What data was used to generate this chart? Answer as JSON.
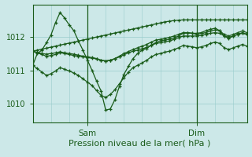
{
  "background_color": "#cce8e8",
  "grid_color": "#99cccc",
  "line_color": "#1a5c1a",
  "xlabel": "Pression niveau de la mer( hPa )",
  "xlabel_fontsize": 8,
  "ytick_values": [
    1010,
    1011,
    1012
  ],
  "ylim": [
    1009.45,
    1012.95
  ],
  "xlim": [
    0,
    47
  ],
  "xtick_positions": [
    12,
    36
  ],
  "xtick_labels": [
    "Sam",
    "Dim"
  ],
  "s1": [
    1011.15,
    1011.5,
    1011.6,
    1011.82,
    1012.05,
    1012.42,
    1012.72,
    1012.55,
    1012.35,
    1012.18,
    1011.88,
    1011.6,
    1011.3,
    1011.0,
    1010.68,
    1010.38,
    1009.82,
    1009.85,
    1010.12,
    1010.52,
    1010.88,
    1011.12,
    1011.35,
    1011.5,
    1011.6,
    1011.65,
    1011.75,
    1011.82,
    1011.88,
    1011.9,
    1011.92,
    1011.96,
    1012.02,
    1012.1,
    1012.12,
    1012.1,
    1012.1,
    1012.12,
    1012.18,
    1012.22,
    1012.25,
    1012.18,
    1012.02,
    1011.95,
    1012.02,
    1012.07,
    1012.12,
    1012.07
  ],
  "s2": [
    1011.57,
    1011.6,
    1011.63,
    1011.66,
    1011.69,
    1011.72,
    1011.75,
    1011.78,
    1011.81,
    1011.84,
    1011.87,
    1011.9,
    1011.93,
    1011.96,
    1011.99,
    1012.02,
    1012.05,
    1012.08,
    1012.11,
    1012.14,
    1012.17,
    1012.2,
    1012.23,
    1012.26,
    1012.29,
    1012.32,
    1012.35,
    1012.38,
    1012.41,
    1012.44,
    1012.46,
    1012.48,
    1012.49,
    1012.5,
    1012.5,
    1012.5,
    1012.5,
    1012.5,
    1012.5,
    1012.5,
    1012.5,
    1012.5,
    1012.5,
    1012.5,
    1012.5,
    1012.5,
    1012.5,
    1012.5
  ],
  "s3": [
    1011.57,
    1011.53,
    1011.5,
    1011.48,
    1011.5,
    1011.52,
    1011.55,
    1011.52,
    1011.5,
    1011.48,
    1011.45,
    1011.42,
    1011.4,
    1011.38,
    1011.35,
    1011.3,
    1011.28,
    1011.3,
    1011.35,
    1011.42,
    1011.5,
    1011.56,
    1011.62,
    1011.67,
    1011.72,
    1011.77,
    1011.84,
    1011.9,
    1011.92,
    1011.95,
    1011.98,
    1012.02,
    1012.07,
    1012.12,
    1012.12,
    1012.1,
    1012.07,
    1012.1,
    1012.12,
    1012.17,
    1012.2,
    1012.17,
    1012.07,
    1012.02,
    1012.07,
    1012.12,
    1012.17,
    1012.12
  ],
  "s4": [
    1011.57,
    1011.52,
    1011.47,
    1011.42,
    1011.44,
    1011.47,
    1011.52,
    1011.5,
    1011.47,
    1011.44,
    1011.42,
    1011.4,
    1011.38,
    1011.36,
    1011.34,
    1011.3,
    1011.28,
    1011.3,
    1011.34,
    1011.4,
    1011.46,
    1011.52,
    1011.57,
    1011.6,
    1011.64,
    1011.68,
    1011.74,
    1011.8,
    1011.82,
    1011.85,
    1011.87,
    1011.92,
    1011.97,
    1012.02,
    1012.02,
    1012.02,
    1012.02,
    1012.04,
    1012.07,
    1012.1,
    1012.12,
    1012.1,
    1012.02,
    1011.98,
    1012.02,
    1012.07,
    1012.1,
    1012.07
  ],
  "s5": [
    1011.15,
    1011.05,
    1010.95,
    1010.85,
    1010.9,
    1010.98,
    1011.08,
    1011.03,
    1010.98,
    1010.92,
    1010.85,
    1010.75,
    1010.65,
    1010.55,
    1010.4,
    1010.25,
    1010.2,
    1010.28,
    1010.42,
    1010.6,
    1010.78,
    1010.95,
    1011.08,
    1011.15,
    1011.22,
    1011.3,
    1011.4,
    1011.47,
    1011.5,
    1011.54,
    1011.57,
    1011.62,
    1011.67,
    1011.74,
    1011.72,
    1011.7,
    1011.67,
    1011.7,
    1011.74,
    1011.8,
    1011.84,
    1011.8,
    1011.67,
    1011.62,
    1011.67,
    1011.72,
    1011.77,
    1011.72
  ]
}
